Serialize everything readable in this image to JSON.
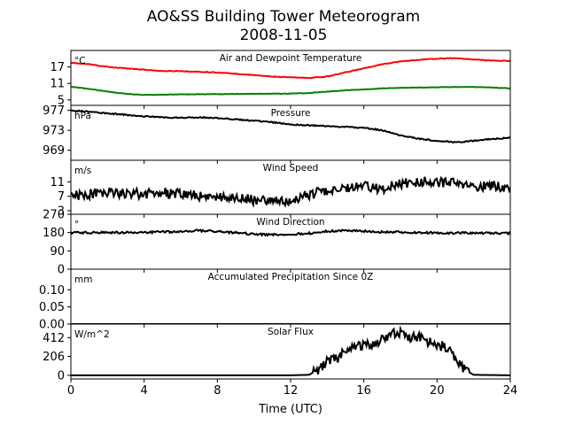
{
  "figure": {
    "title": "AO&SS Building Tower Meteorogram",
    "subtitle": "2008-11-05",
    "xlabel": "Time (UTC)"
  },
  "chart_data": [
    {
      "type": "line",
      "title": "Air and Dewpoint Temperature",
      "unit": "°C",
      "xlim": [
        0,
        24
      ],
      "ylim": [
        3,
        23
      ],
      "yticks": [
        "17",
        "11",
        "5"
      ],
      "ytick_values": [
        17,
        11,
        5
      ],
      "series": [
        {
          "color": "#ff0000",
          "noise": 0.12,
          "x": [
            0,
            1,
            2,
            3,
            4,
            5,
            6,
            7,
            8,
            9,
            10,
            11,
            12,
            13,
            14,
            15,
            16,
            17,
            18,
            19,
            20,
            21,
            22,
            23,
            24
          ],
          "values": [
            18.5,
            18,
            17,
            16.5,
            16,
            15.5,
            15.5,
            15.2,
            15,
            14.5,
            14,
            13.5,
            13.2,
            13,
            13.5,
            15,
            16.5,
            18,
            19,
            19.6,
            20,
            20.2,
            19.7,
            19.3,
            19.2
          ]
        },
        {
          "color": "#008000",
          "noise": 0.08,
          "x": [
            0,
            1,
            2,
            3,
            4,
            5,
            6,
            8,
            10,
            12,
            13,
            14,
            15,
            16,
            17,
            18,
            19,
            20,
            21,
            22,
            23,
            24
          ],
          "values": [
            9.8,
            9,
            8,
            7.2,
            6.8,
            6.9,
            7,
            7.1,
            7.2,
            7.3,
            7.5,
            8,
            8.5,
            8.8,
            9.2,
            9.4,
            9.5,
            9.6,
            9.7,
            9.7,
            9.5,
            9.2
          ]
        }
      ]
    },
    {
      "type": "line",
      "title": "Pressure",
      "unit": "hPa",
      "xlim": [
        0,
        24
      ],
      "ylim": [
        967,
        978
      ],
      "yticks": [
        "977",
        "973",
        "969"
      ],
      "ytick_values": [
        977,
        973,
        969
      ],
      "series": [
        {
          "color": "#000000",
          "noise": 0.12,
          "x": [
            0,
            1,
            2,
            3,
            4,
            5,
            6,
            7,
            8,
            9,
            10,
            11,
            12,
            13,
            14,
            15,
            16,
            17,
            18,
            19,
            20,
            21,
            22,
            23,
            24
          ],
          "values": [
            977,
            976.7,
            976.4,
            976.1,
            975.8,
            975.6,
            975.5,
            975.6,
            975.5,
            975.2,
            974.9,
            974.6,
            974.2,
            974,
            973.8,
            973.7,
            973.5,
            973,
            972,
            971.3,
            970.9,
            970.6,
            970.9,
            971.3,
            971.5
          ]
        }
      ]
    },
    {
      "type": "line",
      "title": "Wind Speed",
      "unit": "m/s",
      "xlim": [
        0,
        24
      ],
      "ylim": [
        2,
        17
      ],
      "yticks": [
        "11",
        "7",
        "3"
      ],
      "ytick_values": [
        11,
        7,
        3
      ],
      "series": [
        {
          "color": "#000000",
          "noise": 1.4,
          "x": [
            0,
            1,
            2,
            3,
            4,
            5,
            6,
            7,
            8,
            9,
            10,
            11,
            12,
            13,
            14,
            15,
            16,
            17,
            18,
            19,
            20,
            21,
            22,
            23,
            24
          ],
          "values": [
            7,
            7.6,
            8.3,
            7.8,
            7.7,
            8,
            7.6,
            7,
            6.8,
            6.7,
            6,
            5.8,
            5.4,
            7.5,
            8.5,
            9.5,
            10,
            9,
            10.5,
            11,
            11,
            10.5,
            9.5,
            10,
            9.5
          ]
        }
      ]
    },
    {
      "type": "line",
      "title": "Wind Direction",
      "unit": "°",
      "xlim": [
        0,
        24
      ],
      "ylim": [
        0,
        270
      ],
      "yticks": [
        "270",
        "180",
        "90",
        "0"
      ],
      "ytick_values": [
        270,
        180,
        90,
        0
      ],
      "series": [
        {
          "color": "#000000",
          "noise": 5,
          "x": [
            0,
            2,
            4,
            6,
            7,
            8,
            9,
            10,
            11,
            12,
            13,
            14,
            15,
            16,
            17,
            18,
            19,
            20,
            22,
            24
          ],
          "values": [
            180,
            180,
            181,
            185,
            190,
            185,
            180,
            172,
            170,
            172,
            176,
            186,
            190,
            187,
            183,
            182,
            180,
            178,
            178,
            176
          ]
        }
      ]
    },
    {
      "type": "line",
      "title": "Accumulated Precipitation Since 0Z",
      "unit": "mm",
      "xlim": [
        0,
        24
      ],
      "ylim": [
        0,
        0.16
      ],
      "yticks": [
        "0.10",
        "0.05",
        "0.00"
      ],
      "ytick_values": [
        0.1,
        0.05,
        0
      ],
      "series": [
        {
          "color": "#000000",
          "noise": 0,
          "x": [
            0,
            24
          ],
          "values": [
            0,
            0
          ]
        }
      ]
    },
    {
      "type": "line",
      "title": "Solar Flux",
      "unit": "W/m^2",
      "xlim": [
        0,
        24
      ],
      "ylim": [
        -40,
        560
      ],
      "yticks": [
        "412",
        "206",
        "0"
      ],
      "ytick_values": [
        412,
        206,
        0
      ],
      "series": [
        {
          "color": "#000000",
          "noise": 55,
          "noise_min_y": 30,
          "x": [
            0,
            12,
            13,
            13.5,
            14,
            14.5,
            15,
            15.5,
            16,
            16.5,
            17,
            17.5,
            18,
            18.5,
            19,
            19.5,
            20,
            20.5,
            21,
            21.5,
            22,
            24
          ],
          "values": [
            0,
            0,
            5,
            60,
            150,
            180,
            260,
            300,
            330,
            330,
            400,
            450,
            470,
            420,
            420,
            370,
            340,
            300,
            200,
            60,
            5,
            0
          ]
        }
      ]
    }
  ],
  "xaxis": {
    "ticks": [
      "0",
      "4",
      "8",
      "12",
      "16",
      "20",
      "24"
    ],
    "tick_values": [
      0,
      4,
      8,
      12,
      16,
      20,
      24
    ]
  }
}
